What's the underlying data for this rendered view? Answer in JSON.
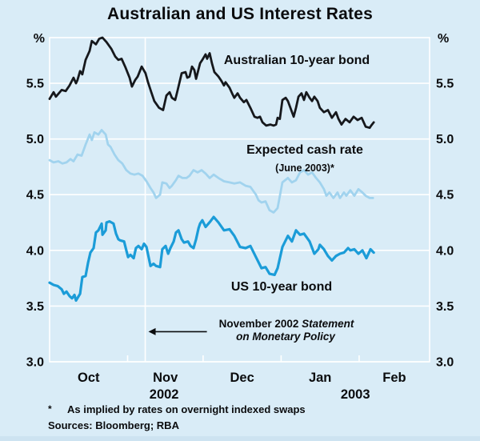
{
  "title": "Australian and US Interest Rates",
  "axis_unit": "%",
  "labels": {
    "aus": "Australian 10-year bond",
    "ec_line1": "Expected cash rate",
    "ec_line2": "(June 2003)*",
    "us": "US 10-year bond"
  },
  "annotation": {
    "line1_plain": "November 2002 ",
    "line1_italic": "Statement",
    "line2_italic": "on Monetary Policy"
  },
  "footnote": {
    "marker": "*",
    "text": "As implied by rates on overnight indexed swaps"
  },
  "sources": "Sources: Bloomberg; RBA",
  "colors": {
    "background": "#d9ecf7",
    "grid": "#ffffff",
    "text": "#0b0c0e"
  },
  "chart_data": {
    "type": "line",
    "title": "Australian and US Interest Rates",
    "y_unit": "%",
    "ylim": [
      3.0,
      5.91
    ],
    "yticks": [
      3.0,
      3.5,
      4.0,
      4.5,
      5.0,
      5.5
    ],
    "grid": true,
    "x_domain_days": [
      0,
      151
    ],
    "months": [
      {
        "label": "Oct",
        "start_day": 0,
        "end_day": 31
      },
      {
        "label": "Nov",
        "start_day": 31,
        "end_day": 61
      },
      {
        "label": "Dec",
        "start_day": 61,
        "end_day": 92
      },
      {
        "label": "Jan",
        "start_day": 92,
        "end_day": 123
      },
      {
        "label": "Feb",
        "start_day": 123,
        "end_day": 151
      }
    ],
    "years": [
      {
        "label": "2002",
        "center_day": 45.5
      },
      {
        "label": "2003",
        "center_day": 121.5
      }
    ],
    "smp_marker_day": 38,
    "annotation_arrow": {
      "y_value": 3.27,
      "tail_day": 62.5
    },
    "series": [
      {
        "name": "Australian 10-year bond",
        "color": "#16181c",
        "width": 2.8,
        "points": [
          [
            0,
            5.36
          ],
          [
            1.6,
            5.42
          ],
          [
            2.5,
            5.38
          ],
          [
            4.8,
            5.44
          ],
          [
            6.4,
            5.43
          ],
          [
            7.9,
            5.48
          ],
          [
            9.5,
            5.55
          ],
          [
            10.5,
            5.5
          ],
          [
            11.1,
            5.53
          ],
          [
            12.1,
            5.61
          ],
          [
            13,
            5.58
          ],
          [
            14.3,
            5.71
          ],
          [
            15.9,
            5.79
          ],
          [
            16.8,
            5.88
          ],
          [
            18.4,
            5.85
          ],
          [
            19.7,
            5.9
          ],
          [
            21,
            5.91
          ],
          [
            22.6,
            5.87
          ],
          [
            24.5,
            5.81
          ],
          [
            26.1,
            5.74
          ],
          [
            27.3,
            5.71
          ],
          [
            28.6,
            5.72
          ],
          [
            30.2,
            5.64
          ],
          [
            31.8,
            5.55
          ],
          [
            32.7,
            5.47
          ],
          [
            34,
            5.53
          ],
          [
            35,
            5.56
          ],
          [
            36.6,
            5.65
          ],
          [
            38.1,
            5.59
          ],
          [
            39.1,
            5.51
          ],
          [
            40.4,
            5.42
          ],
          [
            41.6,
            5.34
          ],
          [
            43.5,
            5.28
          ],
          [
            45.1,
            5.26
          ],
          [
            46.4,
            5.39
          ],
          [
            47.7,
            5.42
          ],
          [
            48.6,
            5.37
          ],
          [
            49.9,
            5.35
          ],
          [
            50.9,
            5.44
          ],
          [
            52.5,
            5.59
          ],
          [
            54,
            5.6
          ],
          [
            54.7,
            5.55
          ],
          [
            55.6,
            5.56
          ],
          [
            56.6,
            5.65
          ],
          [
            57.5,
            5.62
          ],
          [
            58.2,
            5.54
          ],
          [
            59.8,
            5.68
          ],
          [
            60.7,
            5.71
          ],
          [
            62,
            5.76
          ],
          [
            62.6,
            5.72
          ],
          [
            63.6,
            5.77
          ],
          [
            64.5,
            5.68
          ],
          [
            65.5,
            5.6
          ],
          [
            67.1,
            5.56
          ],
          [
            68.3,
            5.52
          ],
          [
            69.3,
            5.48
          ],
          [
            69.9,
            5.51
          ],
          [
            71.5,
            5.46
          ],
          [
            72.5,
            5.41
          ],
          [
            73.4,
            5.37
          ],
          [
            74.7,
            5.41
          ],
          [
            75.7,
            5.37
          ],
          [
            77.2,
            5.33
          ],
          [
            78.2,
            5.35
          ],
          [
            79.8,
            5.28
          ],
          [
            81.4,
            5.2
          ],
          [
            82.6,
            5.19
          ],
          [
            83.6,
            5.2
          ],
          [
            84.6,
            5.15
          ],
          [
            86.1,
            5.12
          ],
          [
            87.7,
            5.13
          ],
          [
            89,
            5.12
          ],
          [
            90,
            5.13
          ],
          [
            90.6,
            5.19
          ],
          [
            91.5,
            5.18
          ],
          [
            92.5,
            5.35
          ],
          [
            93.8,
            5.37
          ],
          [
            94.7,
            5.34
          ],
          [
            95.7,
            5.28
          ],
          [
            97,
            5.2
          ],
          [
            97.9,
            5.28
          ],
          [
            98.9,
            5.38
          ],
          [
            100.1,
            5.41
          ],
          [
            101.1,
            5.35
          ],
          [
            102,
            5.42
          ],
          [
            103.3,
            5.37
          ],
          [
            104.3,
            5.34
          ],
          [
            105.2,
            5.38
          ],
          [
            106.5,
            5.34
          ],
          [
            107.4,
            5.28
          ],
          [
            109,
            5.24
          ],
          [
            110.6,
            5.26
          ],
          [
            112.2,
            5.19
          ],
          [
            113.8,
            5.24
          ],
          [
            114.8,
            5.18
          ],
          [
            116,
            5.13
          ],
          [
            117.6,
            5.18
          ],
          [
            119.2,
            5.15
          ],
          [
            120.8,
            5.2
          ],
          [
            122.4,
            5.17
          ],
          [
            124,
            5.19
          ],
          [
            125.6,
            5.11
          ],
          [
            127.2,
            5.1
          ],
          [
            127.8,
            5.12
          ],
          [
            128.8,
            5.15
          ]
        ]
      },
      {
        "name": "Expected cash rate (June 2003)*",
        "color": "#a1d3ee",
        "width": 2.8,
        "points": [
          [
            0,
            4.81
          ],
          [
            1.6,
            4.79
          ],
          [
            3.5,
            4.8
          ],
          [
            5.1,
            4.78
          ],
          [
            6.7,
            4.79
          ],
          [
            8.3,
            4.82
          ],
          [
            9.5,
            4.8
          ],
          [
            11.1,
            4.86
          ],
          [
            12.7,
            4.85
          ],
          [
            14.3,
            4.95
          ],
          [
            15.9,
            5.04
          ],
          [
            16.8,
            4.99
          ],
          [
            17.8,
            5.06
          ],
          [
            19.4,
            5.04
          ],
          [
            20.7,
            5.08
          ],
          [
            22.3,
            5.04
          ],
          [
            23.2,
            4.95
          ],
          [
            24.2,
            4.93
          ],
          [
            25.8,
            4.86
          ],
          [
            27.3,
            4.81
          ],
          [
            28.9,
            4.78
          ],
          [
            30.5,
            4.72
          ],
          [
            32.1,
            4.69
          ],
          [
            33.7,
            4.68
          ],
          [
            35.3,
            4.69
          ],
          [
            36.9,
            4.67
          ],
          [
            38.5,
            4.62
          ],
          [
            40.1,
            4.56
          ],
          [
            41.3,
            4.52
          ],
          [
            42.3,
            4.47
          ],
          [
            43.9,
            4.5
          ],
          [
            44.8,
            4.61
          ],
          [
            46.4,
            4.6
          ],
          [
            47.7,
            4.56
          ],
          [
            48.6,
            4.58
          ],
          [
            50.2,
            4.63
          ],
          [
            51.2,
            4.67
          ],
          [
            52.8,
            4.65
          ],
          [
            54.4,
            4.65
          ],
          [
            55.6,
            4.67
          ],
          [
            57.2,
            4.72
          ],
          [
            58.8,
            4.7
          ],
          [
            60.4,
            4.72
          ],
          [
            62,
            4.69
          ],
          [
            63.6,
            4.65
          ],
          [
            65.2,
            4.68
          ],
          [
            67.1,
            4.65
          ],
          [
            69.3,
            4.62
          ],
          [
            71.5,
            4.61
          ],
          [
            73.4,
            4.6
          ],
          [
            75.7,
            4.61
          ],
          [
            77.9,
            4.58
          ],
          [
            79.8,
            4.57
          ],
          [
            82,
            4.5
          ],
          [
            83,
            4.45
          ],
          [
            84.2,
            4.43
          ],
          [
            85.8,
            4.44
          ],
          [
            87.4,
            4.36
          ],
          [
            89,
            4.34
          ],
          [
            90.6,
            4.38
          ],
          [
            92.5,
            4.61
          ],
          [
            94.7,
            4.65
          ],
          [
            96.3,
            4.61
          ],
          [
            97.9,
            4.63
          ],
          [
            99.5,
            4.7
          ],
          [
            101.1,
            4.72
          ],
          [
            102.7,
            4.68
          ],
          [
            104.3,
            4.7
          ],
          [
            105.9,
            4.65
          ],
          [
            107.4,
            4.61
          ],
          [
            109,
            4.55
          ],
          [
            110,
            4.49
          ],
          [
            111.2,
            4.52
          ],
          [
            112.8,
            4.47
          ],
          [
            114.4,
            4.52
          ],
          [
            115.4,
            4.47
          ],
          [
            117,
            4.52
          ],
          [
            117.9,
            4.49
          ],
          [
            119.5,
            4.54
          ],
          [
            121.1,
            4.49
          ],
          [
            122.7,
            4.55
          ],
          [
            124.3,
            4.52
          ],
          [
            125.6,
            4.49
          ],
          [
            127.2,
            4.47
          ],
          [
            128.5,
            4.47
          ]
        ]
      },
      {
        "name": "US 10-year bond",
        "color": "#1b9cd8",
        "width": 3.2,
        "points": [
          [
            0,
            3.71
          ],
          [
            1.6,
            3.69
          ],
          [
            3.2,
            3.68
          ],
          [
            4.8,
            3.65
          ],
          [
            5.7,
            3.61
          ],
          [
            6.7,
            3.63
          ],
          [
            7.9,
            3.59
          ],
          [
            8.9,
            3.57
          ],
          [
            9.9,
            3.6
          ],
          [
            10.5,
            3.55
          ],
          [
            12.1,
            3.61
          ],
          [
            13,
            3.76
          ],
          [
            14.3,
            3.77
          ],
          [
            15.3,
            3.89
          ],
          [
            16.2,
            3.98
          ],
          [
            17.5,
            4.02
          ],
          [
            18.4,
            4.16
          ],
          [
            19.4,
            4.18
          ],
          [
            20.7,
            4.24
          ],
          [
            21,
            4.14
          ],
          [
            22.3,
            4.18
          ],
          [
            22.6,
            4.25
          ],
          [
            23.8,
            4.26
          ],
          [
            25.4,
            4.24
          ],
          [
            26.4,
            4.15
          ],
          [
            27.3,
            4.1
          ],
          [
            28,
            4.09
          ],
          [
            29.6,
            4.08
          ],
          [
            30.5,
            4.0
          ],
          [
            31.2,
            3.94
          ],
          [
            32.1,
            3.96
          ],
          [
            33.4,
            3.93
          ],
          [
            34.3,
            4.02
          ],
          [
            35.3,
            4.04
          ],
          [
            36.6,
            4.01
          ],
          [
            37.5,
            4.06
          ],
          [
            38.5,
            4.03
          ],
          [
            40.1,
            3.86
          ],
          [
            41.3,
            3.88
          ],
          [
            42.3,
            3.86
          ],
          [
            43.9,
            3.85
          ],
          [
            44.8,
            4.01
          ],
          [
            46.1,
            4.04
          ],
          [
            47.1,
            3.97
          ],
          [
            48,
            4.02
          ],
          [
            49.3,
            4.08
          ],
          [
            50.2,
            4.16
          ],
          [
            51.2,
            4.18
          ],
          [
            52.5,
            4.1
          ],
          [
            53.4,
            4.07
          ],
          [
            55,
            4.08
          ],
          [
            56,
            4.04
          ],
          [
            57.2,
            4.02
          ],
          [
            58.2,
            4.1
          ],
          [
            59.2,
            4.2
          ],
          [
            59.8,
            4.24
          ],
          [
            60.7,
            4.27
          ],
          [
            62,
            4.21
          ],
          [
            63.9,
            4.26
          ],
          [
            65.2,
            4.3
          ],
          [
            67.1,
            4.25
          ],
          [
            69.3,
            4.18
          ],
          [
            71.5,
            4.19
          ],
          [
            73.4,
            4.13
          ],
          [
            75.7,
            4.03
          ],
          [
            77.9,
            4.02
          ],
          [
            79.8,
            4.04
          ],
          [
            82,
            3.94
          ],
          [
            84.2,
            3.84
          ],
          [
            85.8,
            3.85
          ],
          [
            87.4,
            3.79
          ],
          [
            89.4,
            3.78
          ],
          [
            90.6,
            3.84
          ],
          [
            92.5,
            4.03
          ],
          [
            94.7,
            4.13
          ],
          [
            96.3,
            4.08
          ],
          [
            97.9,
            4.18
          ],
          [
            99.5,
            4.14
          ],
          [
            101.1,
            4.15
          ],
          [
            103.3,
            4.08
          ],
          [
            105.2,
            3.97
          ],
          [
            106.8,
            4.01
          ],
          [
            107.4,
            4.05
          ],
          [
            109,
            4.01
          ],
          [
            110.6,
            3.95
          ],
          [
            112.2,
            3.91
          ],
          [
            113.8,
            3.95
          ],
          [
            115.4,
            3.97
          ],
          [
            117,
            3.98
          ],
          [
            118.6,
            4.02
          ],
          [
            119.5,
            4.0
          ],
          [
            121.1,
            4.01
          ],
          [
            122.7,
            3.97
          ],
          [
            124.3,
            4.0
          ],
          [
            125.9,
            3.93
          ],
          [
            127.5,
            4.01
          ],
          [
            128.8,
            3.98
          ]
        ]
      }
    ]
  }
}
